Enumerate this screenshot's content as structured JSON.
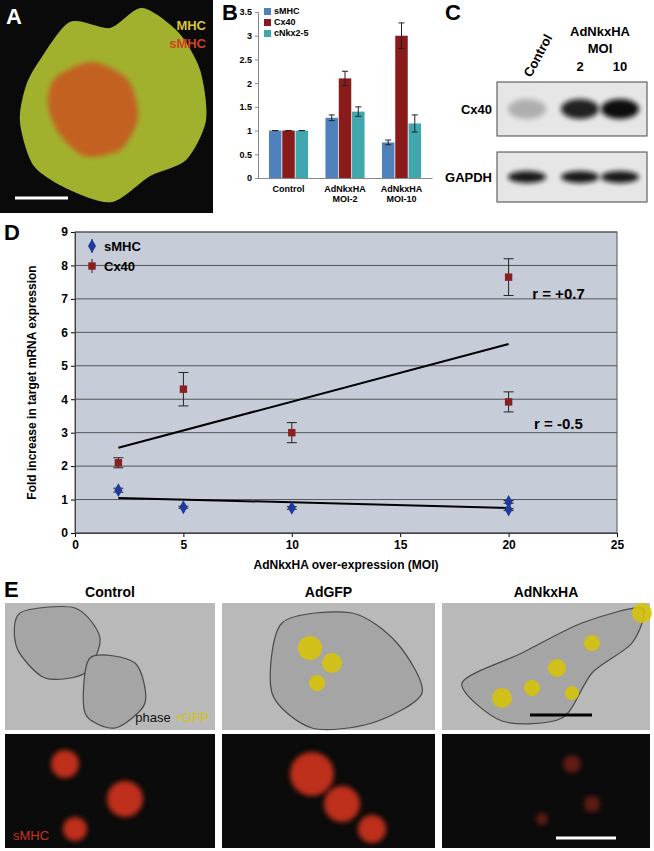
{
  "chart_data": [
    {
      "type": "bar",
      "title": "B",
      "categories": [
        "Control",
        "AdNkxHA MOI-2",
        "AdNkxHA MOI-10"
      ],
      "series": [
        {
          "name": "sMHC",
          "color": "#4f81bd",
          "values": [
            1,
            1.27,
            0.75
          ],
          "errors": [
            0,
            0.06,
            0.05
          ]
        },
        {
          "name": "Cx40",
          "color": "#8b1a1a",
          "values": [
            1,
            2.1,
            3.0
          ],
          "errors": [
            0,
            0.15,
            0.27
          ]
        },
        {
          "name": "cNkx2-5",
          "color": "#3fa7ad",
          "values": [
            1,
            1.4,
            1.15
          ],
          "errors": [
            0,
            0.1,
            0.18
          ]
        }
      ],
      "ylim": [
        0,
        3.5
      ],
      "yticks": [
        0,
        0.5,
        1,
        1.5,
        2,
        2.5,
        3,
        3.5
      ],
      "grid": false,
      "legend": "top-left"
    },
    {
      "type": "scatter",
      "title": "D",
      "x_label": "AdNkxHA over-expression (MOI)",
      "y_label": "Fold increase in target mRNA expression",
      "xlim": [
        0,
        25
      ],
      "xticks": [
        0,
        5,
        10,
        15,
        20,
        25
      ],
      "ylim": [
        0,
        9
      ],
      "yticks": [
        0,
        1,
        2,
        3,
        4,
        5,
        6,
        7,
        8,
        9
      ],
      "grid": true,
      "legend": "top-left",
      "series": [
        {
          "name": "sMHC",
          "color": "#1f3a9c",
          "marker": "diamond",
          "x": [
            2,
            5,
            10,
            20,
            20
          ],
          "values": [
            1.28,
            0.77,
            0.75,
            0.93,
            0.7
          ],
          "errors": [
            0.06,
            0.03,
            0.04,
            0.04,
            0.03
          ],
          "trend": {
            "x": [
              2,
              20
            ],
            "values": [
              1.05,
              0.75
            ]
          }
        },
        {
          "name": "Cx40",
          "color": "#8b1e1e",
          "marker": "square",
          "x": [
            2,
            5,
            10,
            20,
            20
          ],
          "values": [
            2.1,
            4.3,
            3.0,
            7.65,
            3.92
          ],
          "errors": [
            0.15,
            0.5,
            0.3,
            0.55,
            0.3
          ],
          "trend": {
            "x": [
              2,
              20
            ],
            "values": [
              2.55,
              5.65
            ]
          }
        }
      ],
      "annotations": [
        {
          "text": "r = +0.7",
          "x": 22.3,
          "y": 7.0
        },
        {
          "text": "r = -0.5",
          "x": 22.3,
          "y": 3.1
        }
      ]
    }
  ],
  "panels": [
    {
      "label": "A",
      "channels": [
        {
          "text": "MHC",
          "color": "#d9c43a"
        },
        {
          "text": "sMHC",
          "color": "#d2401e"
        }
      ]
    },
    {
      "label": "C",
      "header": "AdNkxHA",
      "moi_label": "MOI",
      "lanes": [
        "Control",
        "2",
        "10"
      ],
      "rows": [
        "Cx40",
        "GAPDH"
      ]
    },
    {
      "label": "E",
      "columns": [
        "Control",
        "AdGFP",
        "AdNkxHA"
      ],
      "top_legend": [
        {
          "text": "phase",
          "color": "#111111"
        },
        {
          "text": "+GFP",
          "color": "#d8c400"
        }
      ],
      "bottom_legend": {
        "text": "sMHC",
        "color": "#c8321e"
      }
    }
  ]
}
